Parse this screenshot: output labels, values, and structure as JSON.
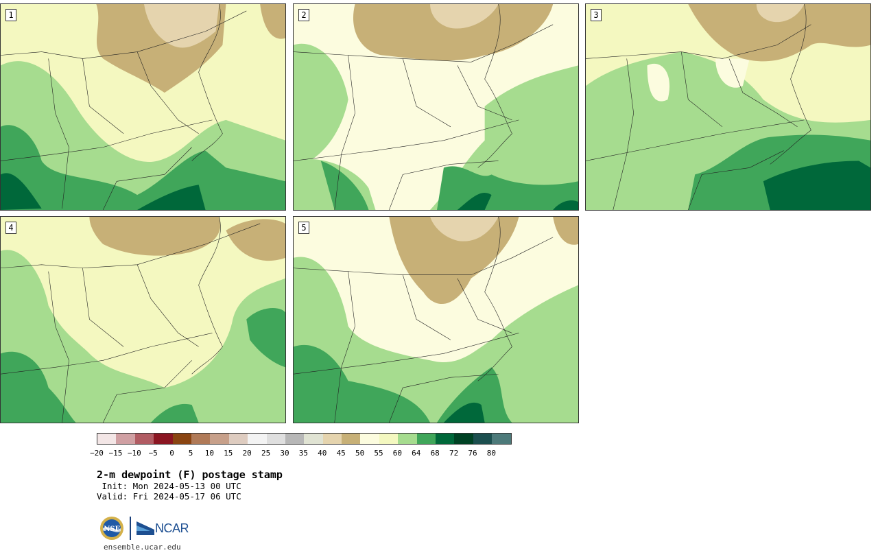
{
  "panels": [
    {
      "label": "1"
    },
    {
      "label": "2"
    },
    {
      "label": "3"
    },
    {
      "label": "4"
    },
    {
      "label": "5"
    }
  ],
  "colorbar": {
    "colors": [
      "#f3e6e6",
      "#d0a0a3",
      "#b15c63",
      "#8b1622",
      "#8a4512",
      "#b07a58",
      "#c7a08a",
      "#deccc0",
      "#f3f3f3",
      "#dfdfdf",
      "#b7b7b7",
      "#e0e3d3",
      "#e5d4ae",
      "#c7b077",
      "#fcfcdf",
      "#f4f8c0",
      "#a6dc8f",
      "#40a65a",
      "#00683a",
      "#004224",
      "#1c4f4f",
      "#4d7a7a"
    ],
    "ticks": [
      "−20",
      "−15",
      "−10",
      "−5",
      "0",
      "5",
      "10",
      "15",
      "20",
      "25",
      "30",
      "35",
      "40",
      "45",
      "50",
      "55",
      "60",
      "64",
      "68",
      "72",
      "76",
      "80"
    ]
  },
  "title": "2-m dewpoint (F) postage stamp",
  "init": " Init: Mon 2024-05-13 00 UTC",
  "valid": "Valid: Fri 2024-05-17 06 UTC",
  "logo": {
    "nsf": "NSF",
    "ncar": "NCAR"
  },
  "website": "ensemble.ucar.edu"
}
